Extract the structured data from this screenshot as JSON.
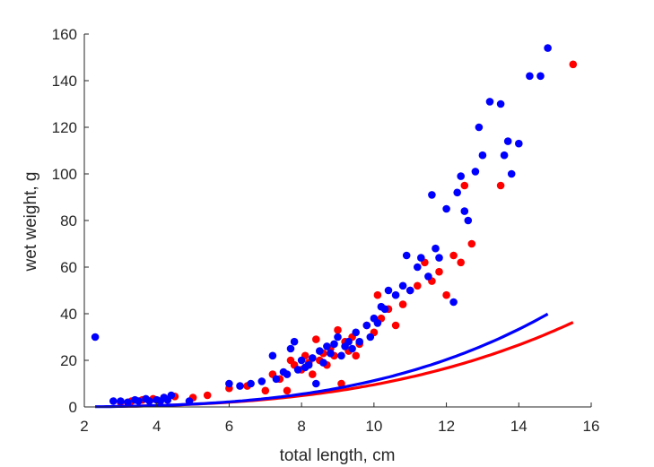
{
  "chart_data": {
    "type": "scatter",
    "xlabel": "total length, cm",
    "ylabel": "wet weight, g",
    "xlim": [
      2,
      16
    ],
    "ylim": [
      0,
      160
    ],
    "xticks": [
      2,
      4,
      6,
      8,
      10,
      12,
      14,
      16
    ],
    "yticks": [
      0,
      20,
      40,
      60,
      80,
      100,
      120,
      140,
      160
    ],
    "grid": false,
    "series": [
      {
        "color": "#ff0000",
        "points": [
          [
            3.0,
            2
          ],
          [
            3.3,
            2.5
          ],
          [
            3.6,
            3
          ],
          [
            3.9,
            3.5
          ],
          [
            4.2,
            4
          ],
          [
            4.5,
            4.5
          ],
          [
            5.0,
            4
          ],
          [
            5.4,
            5
          ],
          [
            6.0,
            8
          ],
          [
            6.5,
            9
          ],
          [
            7.0,
            7
          ],
          [
            7.2,
            14
          ],
          [
            7.4,
            12
          ],
          [
            7.6,
            7
          ],
          [
            7.7,
            20
          ],
          [
            7.8,
            18
          ],
          [
            8.0,
            16
          ],
          [
            8.1,
            22
          ],
          [
            8.2,
            19
          ],
          [
            8.3,
            14
          ],
          [
            8.4,
            29
          ],
          [
            8.5,
            20
          ],
          [
            8.6,
            23
          ],
          [
            8.7,
            18
          ],
          [
            8.8,
            25
          ],
          [
            8.9,
            22
          ],
          [
            9.0,
            33
          ],
          [
            9.1,
            10
          ],
          [
            9.2,
            28
          ],
          [
            9.3,
            24
          ],
          [
            9.4,
            30
          ],
          [
            9.5,
            22
          ],
          [
            9.6,
            27
          ],
          [
            9.8,
            35
          ],
          [
            10.0,
            32
          ],
          [
            10.1,
            48
          ],
          [
            10.2,
            38
          ],
          [
            10.4,
            42
          ],
          [
            10.6,
            35
          ],
          [
            10.8,
            44
          ],
          [
            11.0,
            50
          ],
          [
            11.2,
            52
          ],
          [
            11.4,
            62
          ],
          [
            11.6,
            54
          ],
          [
            11.8,
            58
          ],
          [
            12.0,
            48
          ],
          [
            12.2,
            65
          ],
          [
            12.4,
            62
          ],
          [
            12.5,
            95
          ],
          [
            12.7,
            70
          ],
          [
            13.5,
            95
          ],
          [
            15.5,
            147
          ]
        ],
        "fit": {
          "a": 0.0085,
          "b": 3.05
        }
      },
      {
        "color": "#0000ff",
        "points": [
          [
            2.3,
            30
          ],
          [
            2.8,
            2.5
          ],
          [
            3.0,
            2.5
          ],
          [
            3.2,
            2
          ],
          [
            3.4,
            3
          ],
          [
            3.5,
            2.5
          ],
          [
            3.7,
            3.5
          ],
          [
            3.8,
            2.5
          ],
          [
            4.0,
            3
          ],
          [
            4.1,
            2.5
          ],
          [
            4.2,
            4
          ],
          [
            4.3,
            3
          ],
          [
            4.4,
            5
          ],
          [
            4.9,
            2.5
          ],
          [
            6.0,
            10
          ],
          [
            6.3,
            9
          ],
          [
            6.6,
            10
          ],
          [
            6.9,
            11
          ],
          [
            7.2,
            22
          ],
          [
            7.3,
            12
          ],
          [
            7.5,
            15
          ],
          [
            7.6,
            14
          ],
          [
            7.7,
            25
          ],
          [
            7.8,
            28
          ],
          [
            7.9,
            16
          ],
          [
            8.0,
            20
          ],
          [
            8.1,
            17
          ],
          [
            8.2,
            18
          ],
          [
            8.3,
            21
          ],
          [
            8.4,
            10
          ],
          [
            8.5,
            24
          ],
          [
            8.6,
            19
          ],
          [
            8.7,
            26
          ],
          [
            8.8,
            23
          ],
          [
            8.9,
            27
          ],
          [
            9.0,
            30
          ],
          [
            9.1,
            22
          ],
          [
            9.2,
            26
          ],
          [
            9.3,
            28
          ],
          [
            9.4,
            25
          ],
          [
            9.5,
            32
          ],
          [
            9.6,
            28
          ],
          [
            9.8,
            35
          ],
          [
            9.9,
            30
          ],
          [
            10.0,
            38
          ],
          [
            10.1,
            36
          ],
          [
            10.2,
            43
          ],
          [
            10.3,
            42
          ],
          [
            10.4,
            50
          ],
          [
            10.6,
            48
          ],
          [
            10.8,
            52
          ],
          [
            10.9,
            65
          ],
          [
            11.0,
            50
          ],
          [
            11.2,
            60
          ],
          [
            11.3,
            64
          ],
          [
            11.5,
            56
          ],
          [
            11.6,
            91
          ],
          [
            11.7,
            68
          ],
          [
            11.8,
            64
          ],
          [
            12.0,
            85
          ],
          [
            12.2,
            45
          ],
          [
            12.3,
            92
          ],
          [
            12.4,
            99
          ],
          [
            12.5,
            84
          ],
          [
            12.6,
            80
          ],
          [
            12.8,
            101
          ],
          [
            12.9,
            120
          ],
          [
            13.0,
            108
          ],
          [
            13.2,
            131
          ],
          [
            13.5,
            130
          ],
          [
            13.6,
            108
          ],
          [
            13.7,
            114
          ],
          [
            13.8,
            100
          ],
          [
            14.0,
            113
          ],
          [
            14.3,
            142
          ],
          [
            14.6,
            142
          ],
          [
            14.8,
            154
          ]
        ],
        "fit": {
          "a": 0.0068,
          "b": 3.22
        }
      }
    ]
  }
}
